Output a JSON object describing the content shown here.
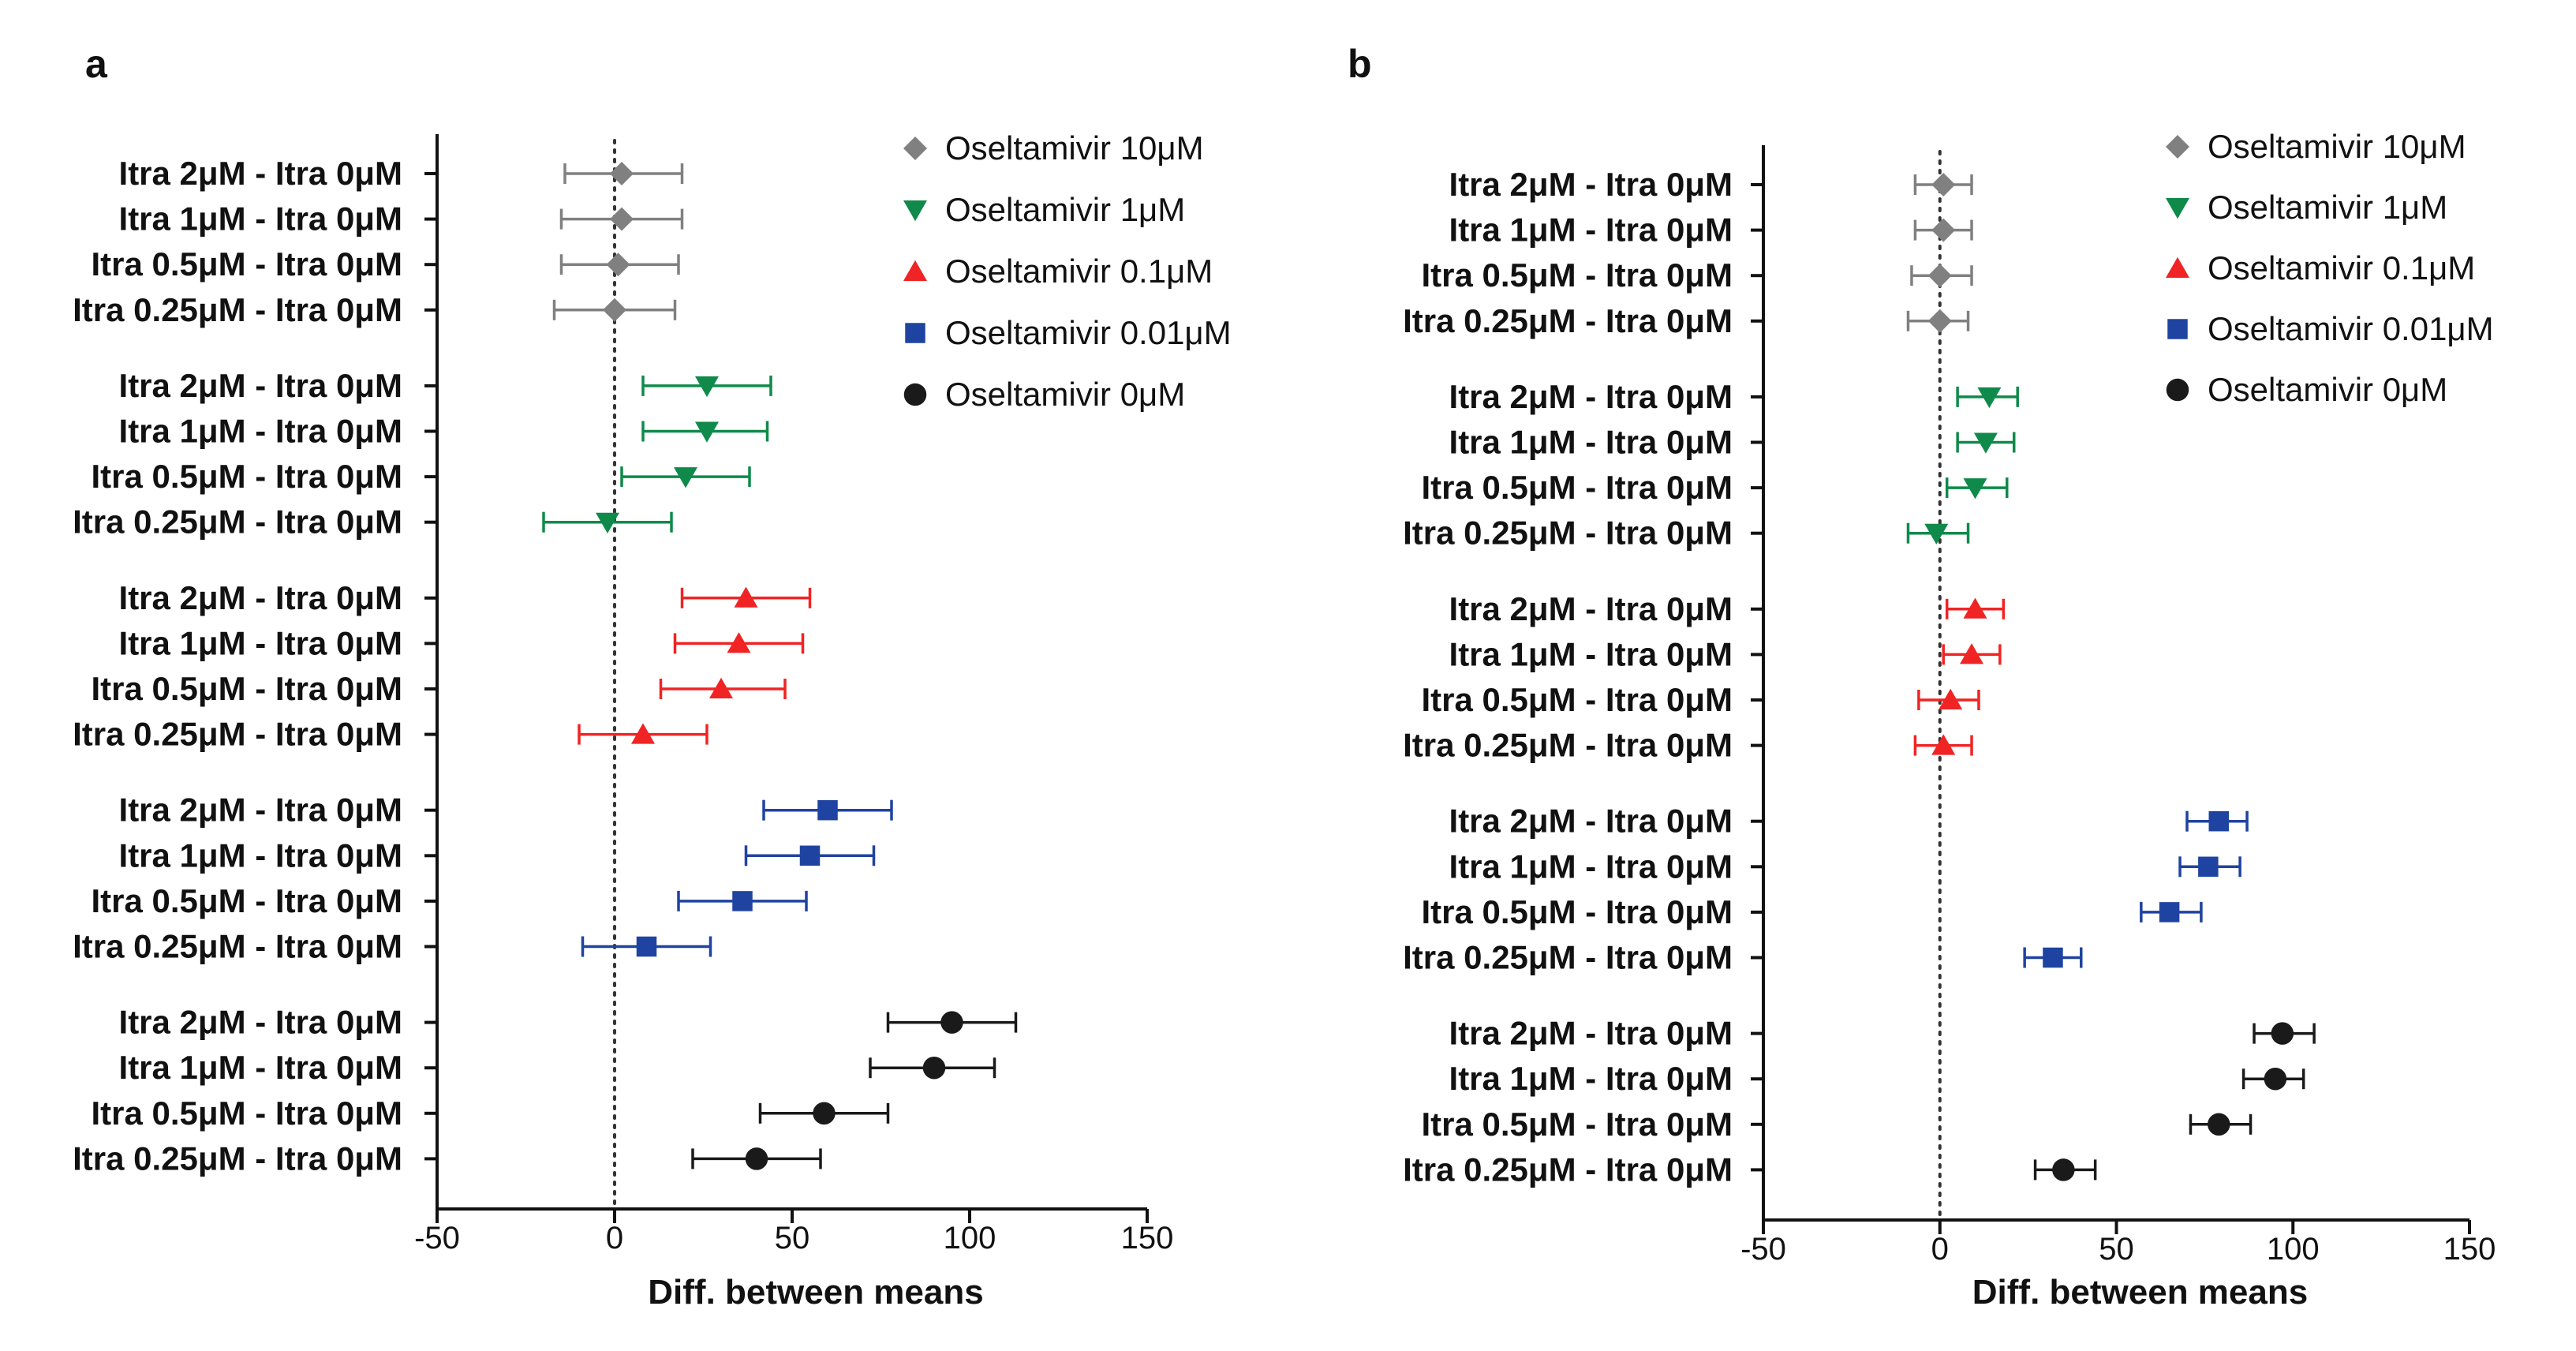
{
  "chart_data": [
    {
      "panel": "a",
      "type": "scatter",
      "xlabel": "Diff. between means",
      "xlim": [
        -50,
        150
      ],
      "xticks": [
        "-50",
        "0",
        "50",
        "100",
        "150"
      ],
      "reference_line": 0,
      "legend": [
        "Oseltamivir 10μM",
        "Oseltamivir 1μM",
        "Oseltamivir 0.1μM",
        "Oseltamivir 0.01μM",
        "Oseltamivir 0μM"
      ],
      "groups": [
        {
          "series": "Oseltamivir 10μM",
          "color": "#808080",
          "marker": "diamond",
          "rows": [
            {
              "label": "Itra 2μM - Itra 0μM",
              "mean": 2,
              "lo": -14,
              "hi": 19
            },
            {
              "label": "Itra 1μM - Itra 0μM",
              "mean": 2,
              "lo": -15,
              "hi": 19
            },
            {
              "label": "Itra 0.5μM - Itra 0μM",
              "mean": 1,
              "lo": -15,
              "hi": 18
            },
            {
              "label": "Itra 0.25μM - Itra 0μM",
              "mean": 0,
              "lo": -17,
              "hi": 17
            }
          ]
        },
        {
          "series": "Oseltamivir 1μM",
          "color": "#0f8a4a",
          "marker": "triangle-down",
          "rows": [
            {
              "label": "Itra 2μM - Itra 0μM",
              "mean": 26,
              "lo": 8,
              "hi": 44
            },
            {
              "label": "Itra 1μM - Itra 0μM",
              "mean": 26,
              "lo": 8,
              "hi": 43
            },
            {
              "label": "Itra 0.5μM - Itra 0μM",
              "mean": 20,
              "lo": 2,
              "hi": 38
            },
            {
              "label": "Itra 0.25μM - Itra 0μM",
              "mean": -2,
              "lo": -20,
              "hi": 16
            }
          ]
        },
        {
          "series": "Oseltamivir 0.1μM",
          "color": "#f02424",
          "marker": "triangle-up",
          "rows": [
            {
              "label": "Itra 2μM - Itra 0μM",
              "mean": 37,
              "lo": 19,
              "hi": 55
            },
            {
              "label": "Itra 1μM - Itra 0μM",
              "mean": 35,
              "lo": 17,
              "hi": 53
            },
            {
              "label": "Itra 0.5μM - Itra 0μM",
              "mean": 30,
              "lo": 13,
              "hi": 48
            },
            {
              "label": "Itra 0.25μM - Itra 0μM",
              "mean": 8,
              "lo": -10,
              "hi": 26
            }
          ]
        },
        {
          "series": "Oseltamivir 0.01μM",
          "color": "#1f43a0",
          "marker": "square",
          "rows": [
            {
              "label": "Itra 2μM - Itra 0μM",
              "mean": 60,
              "lo": 42,
              "hi": 78
            },
            {
              "label": "Itra 1μM - Itra 0μM",
              "mean": 55,
              "lo": 37,
              "hi": 73
            },
            {
              "label": "Itra 0.5μM - Itra 0μM",
              "mean": 36,
              "lo": 18,
              "hi": 54
            },
            {
              "label": "Itra 0.25μM - Itra 0μM",
              "mean": 9,
              "lo": -9,
              "hi": 27
            }
          ]
        },
        {
          "series": "Oseltamivir 0μM",
          "color": "#1a1a1a",
          "marker": "circle",
          "rows": [
            {
              "label": "Itra 2μM - Itra 0μM",
              "mean": 95,
              "lo": 77,
              "hi": 113
            },
            {
              "label": "Itra 1μM - Itra 0μM",
              "mean": 90,
              "lo": 72,
              "hi": 107
            },
            {
              "label": "Itra 0.5μM - Itra 0μM",
              "mean": 59,
              "lo": 41,
              "hi": 77
            },
            {
              "label": "Itra 0.25μM - Itra 0μM",
              "mean": 40,
              "lo": 22,
              "hi": 58
            }
          ]
        }
      ]
    },
    {
      "panel": "b",
      "type": "scatter",
      "xlabel": "Diff. between means",
      "xlim": [
        -50,
        150
      ],
      "xticks": [
        "-50",
        "0",
        "50",
        "100",
        "150"
      ],
      "reference_line": 0,
      "legend": [
        "Oseltamivir 10μM",
        "Oseltamivir 1μM",
        "Oseltamivir 0.1μM",
        "Oseltamivir 0.01μM",
        "Oseltamivir 0μM"
      ],
      "groups": [
        {
          "series": "Oseltamivir 10μM",
          "color": "#808080",
          "marker": "diamond",
          "rows": [
            {
              "label": "Itra 2μM - Itra 0μM",
              "mean": 1,
              "lo": -7,
              "hi": 9
            },
            {
              "label": "Itra 1μM - Itra 0μM",
              "mean": 1,
              "lo": -7,
              "hi": 9
            },
            {
              "label": "Itra 0.5μM - Itra 0μM",
              "mean": 0,
              "lo": -8,
              "hi": 9
            },
            {
              "label": "Itra 0.25μM - Itra 0μM",
              "mean": 0,
              "lo": -9,
              "hi": 8
            }
          ]
        },
        {
          "series": "Oseltamivir 1μM",
          "color": "#0f8a4a",
          "marker": "triangle-down",
          "rows": [
            {
              "label": "Itra 2μM - Itra 0μM",
              "mean": 14,
              "lo": 5,
              "hi": 22
            },
            {
              "label": "Itra 1μM - Itra 0μM",
              "mean": 13,
              "lo": 5,
              "hi": 21
            },
            {
              "label": "Itra 0.5μM - Itra 0μM",
              "mean": 10,
              "lo": 2,
              "hi": 19
            },
            {
              "label": "Itra 0.25μM - Itra 0μM",
              "mean": -1,
              "lo": -9,
              "hi": 8
            }
          ]
        },
        {
          "series": "Oseltamivir 0.1μM",
          "color": "#f02424",
          "marker": "triangle-up",
          "rows": [
            {
              "label": "Itra 2μM - Itra 0μM",
              "mean": 10,
              "lo": 2,
              "hi": 18
            },
            {
              "label": "Itra 1μM - Itra 0μM",
              "mean": 9,
              "lo": 1,
              "hi": 17
            },
            {
              "label": "Itra 0.5μM - Itra 0μM",
              "mean": 3,
              "lo": -6,
              "hi": 11
            },
            {
              "label": "Itra 0.25μM - Itra 0μM",
              "mean": 1,
              "lo": -7,
              "hi": 9
            }
          ]
        },
        {
          "series": "Oseltamivir 0.01μM",
          "color": "#1f43a0",
          "marker": "square",
          "rows": [
            {
              "label": "Itra 2μM - Itra 0μM",
              "mean": 79,
              "lo": 70,
              "hi": 87
            },
            {
              "label": "Itra 1μM - Itra 0μM",
              "mean": 76,
              "lo": 68,
              "hi": 85
            },
            {
              "label": "Itra 0.5μM - Itra 0μM",
              "mean": 65,
              "lo": 57,
              "hi": 74
            },
            {
              "label": "Itra 0.25μM - Itra 0μM",
              "mean": 32,
              "lo": 24,
              "hi": 40
            }
          ]
        },
        {
          "series": "Oseltamivir 0μM",
          "color": "#1a1a1a",
          "marker": "circle",
          "rows": [
            {
              "label": "Itra 2μM - Itra 0μM",
              "mean": 97,
              "lo": 89,
              "hi": 106
            },
            {
              "label": "Itra 1μM - Itra 0μM",
              "mean": 95,
              "lo": 86,
              "hi": 103
            },
            {
              "label": "Itra 0.5μM - Itra 0μM",
              "mean": 79,
              "lo": 71,
              "hi": 88
            },
            {
              "label": "Itra 0.25μM - Itra 0μM",
              "mean": 35,
              "lo": 27,
              "hi": 44
            }
          ]
        }
      ]
    }
  ]
}
